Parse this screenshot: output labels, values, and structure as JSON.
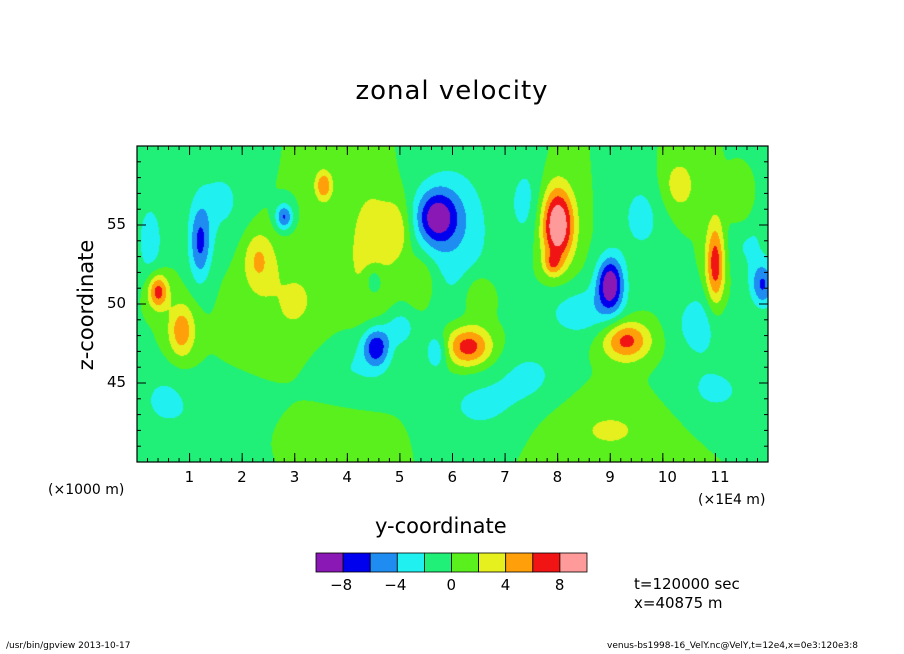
{
  "chart_data": {
    "type": "heatmap",
    "title": "zonal velocity",
    "xlabel": "y-coordinate",
    "ylabel": "z-coordinate",
    "x_unit_label": "(×1E4 m)",
    "y_unit_label": "(×1000 m)",
    "xlim": [
      0,
      12
    ],
    "ylim": [
      40,
      60
    ],
    "x_ticks": [
      1,
      2,
      3,
      4,
      5,
      6,
      7,
      8,
      9,
      10,
      11
    ],
    "y_ticks": [
      45,
      50,
      55
    ],
    "contour_levels": [
      -10,
      -8,
      -6,
      -4,
      -2,
      0,
      2,
      4,
      6,
      8,
      10
    ],
    "colorbar_tick_labels": [
      "-8",
      "-4",
      "0",
      "4",
      "8"
    ],
    "colorbar_colors": [
      "#8a18b4",
      "#0000ee",
      "#1e8cf0",
      "#20f0f0",
      "#20f078",
      "#5af01e",
      "#e6f01e",
      "#ffa00a",
      "#f01414",
      "#ff9a9a"
    ],
    "background_value": 0,
    "features": [
      {
        "y": 8.0,
        "z": 55.0,
        "sy": 0.22,
        "sz": 1.7,
        "amp": 10.8
      },
      {
        "y": 7.9,
        "z": 52.5,
        "sy": 0.12,
        "sz": 0.5,
        "amp": 3.5
      },
      {
        "y": 9.0,
        "z": 51.3,
        "sy": 0.18,
        "sz": 1.2,
        "amp": -9.5
      },
      {
        "y": 5.7,
        "z": 55.5,
        "sy": 0.28,
        "sz": 1.2,
        "amp": -7.5
      },
      {
        "y": 6.05,
        "z": 54.5,
        "sy": 0.55,
        "sz": 3.5,
        "amp": -3.3
      },
      {
        "y": 4.55,
        "z": 47.3,
        "sy": 0.18,
        "sz": 0.9,
        "amp": -7.0
      },
      {
        "y": 6.3,
        "z": 47.3,
        "sy": 0.32,
        "sz": 0.9,
        "amp": 7.5
      },
      {
        "y": 9.3,
        "z": 47.7,
        "sy": 0.32,
        "sz": 0.9,
        "amp": 7.0
      },
      {
        "y": 11.0,
        "z": 52.5,
        "sy": 0.13,
        "sz": 2.0,
        "amp": 7.5
      },
      {
        "y": 11.9,
        "z": 51.2,
        "sy": 0.16,
        "sz": 1.0,
        "amp": -6.0
      },
      {
        "y": 0.4,
        "z": 50.8,
        "sy": 0.14,
        "sz": 0.8,
        "amp": 7.5
      },
      {
        "y": 0.85,
        "z": 48.3,
        "sy": 0.18,
        "sz": 1.2,
        "amp": 5.5
      },
      {
        "y": 1.2,
        "z": 53.8,
        "sy": 0.15,
        "sz": 1.7,
        "amp": -6.0
      },
      {
        "y": 2.3,
        "z": 52.8,
        "sy": 0.2,
        "sz": 1.3,
        "amp": 3.8
      },
      {
        "y": 3.55,
        "z": 57.5,
        "sy": 0.12,
        "sz": 0.7,
        "amp": 5.8
      },
      {
        "y": 4.45,
        "z": 53.5,
        "sy": 0.3,
        "sz": 3.0,
        "amp": 3.4
      },
      {
        "y": 4.95,
        "z": 54.7,
        "sy": 0.2,
        "sz": 1.4,
        "amp": 3.4
      },
      {
        "y": 2.8,
        "z": 55.5,
        "sy": 0.12,
        "sz": 0.6,
        "amp": -6.5
      },
      {
        "y": 0.25,
        "z": 54.0,
        "sy": 0.2,
        "sz": 2.0,
        "amp": -3.0
      },
      {
        "y": 4.5,
        "z": 51.5,
        "sy": 0.14,
        "sz": 0.8,
        "amp": -3.5
      },
      {
        "y": 5.7,
        "z": 47.0,
        "sy": 0.15,
        "sz": 0.8,
        "amp": -4.0
      },
      {
        "y": 5.0,
        "z": 48.5,
        "sy": 0.2,
        "sz": 0.8,
        "amp": -3.0
      },
      {
        "y": 8.5,
        "z": 49.5,
        "sy": 0.55,
        "sz": 1.2,
        "amp": -3.2
      },
      {
        "y": 7.4,
        "z": 56.5,
        "sy": 0.25,
        "sz": 2.0,
        "amp": -2.5
      },
      {
        "y": 10.7,
        "z": 48.8,
        "sy": 0.35,
        "sz": 1.5,
        "amp": -3.2
      },
      {
        "y": 11.6,
        "z": 54.5,
        "sy": 0.3,
        "sz": 1.8,
        "amp": -2.8
      },
      {
        "y": 10.3,
        "z": 57.5,
        "sy": 0.25,
        "sz": 1.3,
        "amp": 3.2
      },
      {
        "y": 11.5,
        "z": 56.0,
        "sy": 0.2,
        "sz": 1.2,
        "amp": 3.0
      },
      {
        "y": 9.6,
        "z": 55.5,
        "sy": 0.35,
        "sz": 2.0,
        "amp": -2.6
      },
      {
        "y": 6.5,
        "z": 50.5,
        "sy": 0.2,
        "sz": 1.0,
        "amp": 3.0
      },
      {
        "y": 5.4,
        "z": 51.5,
        "sy": 0.2,
        "sz": 1.2,
        "amp": 2.8
      },
      {
        "y": 1.6,
        "z": 56.5,
        "sy": 0.4,
        "sz": 2.0,
        "amp": -2.4
      },
      {
        "y": 3.0,
        "z": 50.0,
        "sy": 0.6,
        "sz": 3.0,
        "amp": 2.2
      },
      {
        "y": 6.5,
        "z": 43.5,
        "sy": 0.6,
        "sz": 1.5,
        "amp": -2.3
      },
      {
        "y": 2.0,
        "z": 42.5,
        "sy": 0.8,
        "sz": 1.5,
        "amp": -2.3
      },
      {
        "y": 9.0,
        "z": 42.0,
        "sy": 0.8,
        "sz": 1.5,
        "amp": 2.2
      },
      {
        "y": 11.0,
        "z": 44.5,
        "sy": 0.6,
        "sz": 1.5,
        "amp": -2.3
      },
      {
        "y": 4.0,
        "z": 46.0,
        "sy": 0.6,
        "sz": 1.6,
        "amp": -2.2
      },
      {
        "y": 0.5,
        "z": 44.0,
        "sy": 0.4,
        "sz": 1.5,
        "amp": -2.2
      },
      {
        "y": 3.2,
        "z": 42.0,
        "sy": 0.8,
        "sz": 1.2,
        "amp": 2.1
      },
      {
        "y": 7.5,
        "z": 45.5,
        "sy": 0.5,
        "sz": 1.5,
        "amp": -2.2
      }
    ]
  },
  "annotations": {
    "time": "t=120000 sec",
    "position": "x=40875 m"
  },
  "footer": {
    "left": "/usr/bin/gpview  2013-10-17",
    "right": "venus-bs1998-16_VelY.nc@VelY,t=12e4,x=0e3:120e3:8"
  }
}
